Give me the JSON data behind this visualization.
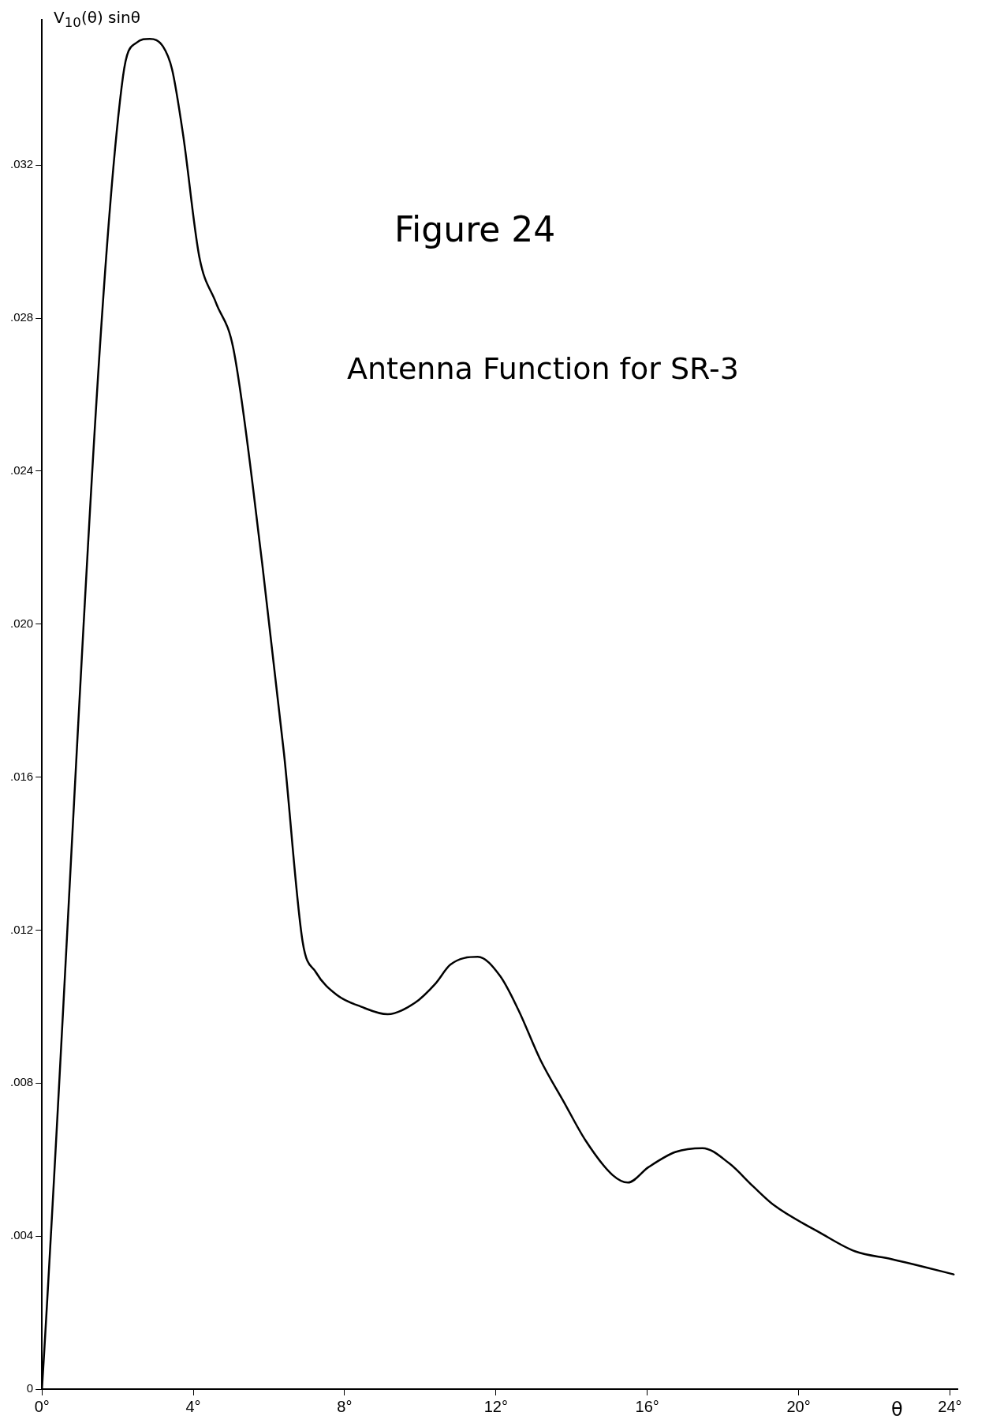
{
  "chart_data": {
    "type": "line",
    "title": "Figure 24",
    "subtitle": "Antenna Function for SR-3",
    "xlabel": "θ",
    "ylabel": "V$_{10}$(θ) sinθ",
    "x": [
      0,
      2.14,
      2.5,
      2.85,
      3.2,
      3.44,
      3.73,
      4.16,
      4.6,
      5.06,
      5.82,
      6.4,
      6.89,
      7.24,
      7.8,
      8.43,
      9.14,
      9.86,
      10.4,
      10.8,
      11.52,
      12.11,
      12.6,
      13.18,
      13.8,
      14.37,
      15.08,
      15.49,
      16.03,
      16.75,
      17.46,
      18.17,
      18.8,
      19.36,
      20.55,
      21.5,
      22.45,
      23.3,
      24.1
    ],
    "series": [
      {
        "color": "#000000",
        "values": [
          0,
          0.0343,
          0.0352,
          0.0353,
          0.0351,
          0.0345,
          0.0328,
          0.0296,
          0.0284,
          0.0272,
          0.0216,
          0.0166,
          0.0117,
          0.0109,
          0.0103,
          0.01,
          0.0098,
          0.0101,
          0.0106,
          0.0111,
          0.0113,
          0.0108,
          0.0099,
          0.0086,
          0.0075,
          0.0065,
          0.0056,
          0.0054,
          0.0058,
          0.0062,
          0.0063,
          0.0059,
          0.0053,
          0.0048,
          0.0041,
          0.0036,
          0.0034,
          0.0032,
          0.003
        ]
      }
    ],
    "xlim": [
      0,
      24.2
    ],
    "ylim": [
      0,
      0.0358
    ],
    "xticks": [
      {
        "value": 0,
        "label": "0°"
      },
      {
        "value": 4,
        "label": "4°"
      },
      {
        "value": 8,
        "label": "8°"
      },
      {
        "value": 12,
        "label": "12°"
      },
      {
        "value": 16,
        "label": "16°"
      },
      {
        "value": 20,
        "label": "20°"
      },
      {
        "value": 24,
        "label": "24°"
      }
    ],
    "yticks": [
      {
        "value": 0,
        "label": "0"
      },
      {
        "value": 0.004,
        "label": ".004"
      },
      {
        "value": 0.008,
        "label": ".008"
      },
      {
        "value": 0.012,
        "label": ".012"
      },
      {
        "value": 0.016,
        "label": ".016"
      },
      {
        "value": 0.02,
        "label": ".020"
      },
      {
        "value": 0.024,
        "label": ".024"
      },
      {
        "value": 0.028,
        "label": ".028"
      },
      {
        "value": 0.032,
        "label": ".032"
      }
    ],
    "grid": false,
    "legend": false,
    "marker": "none",
    "line_style": "solid"
  }
}
